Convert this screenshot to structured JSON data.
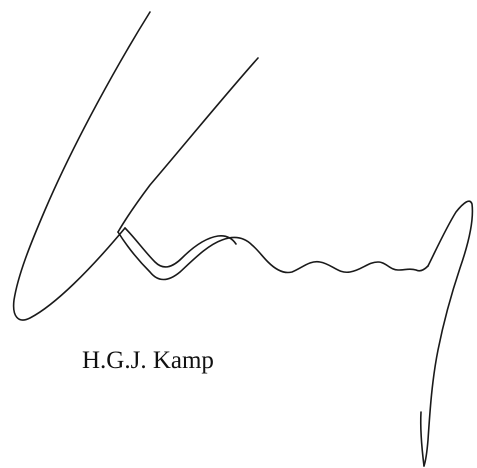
{
  "signature": {
    "signatory_name": "H.G.J. Kamp",
    "handwritten_text": "Kamp",
    "ink_color": "#1a1a1a"
  }
}
